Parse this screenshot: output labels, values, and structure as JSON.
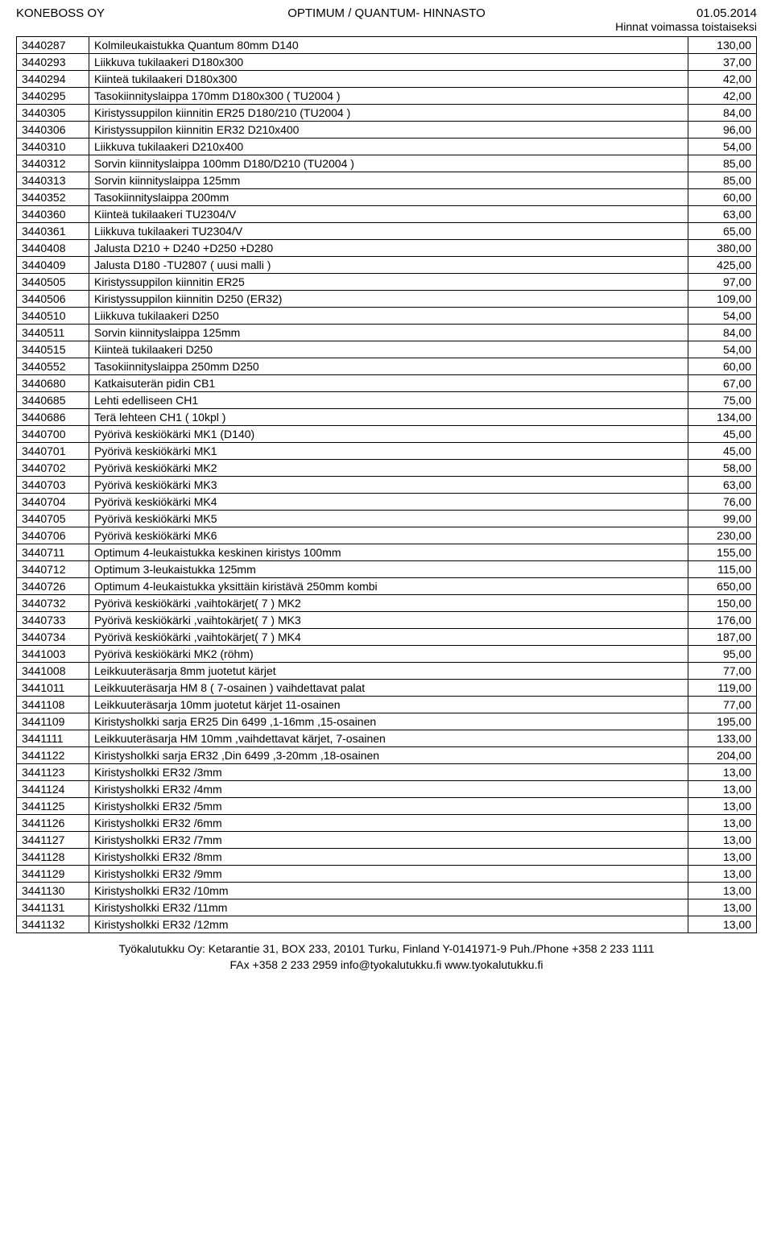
{
  "header": {
    "company": "KONEBOSS OY",
    "title": "OPTIMUM / QUANTUM- HINNASTO",
    "date": "01.05.2014",
    "validity": "Hinnat voimassa toistaiseksi"
  },
  "table": {
    "columns": [
      "code",
      "description",
      "price"
    ],
    "col_widths": {
      "code": "90px",
      "desc": "auto",
      "price": "85px"
    },
    "text_align": {
      "code": "left",
      "description": "left",
      "price": "right"
    },
    "border_color": "#000000",
    "font_size": 14,
    "rows": [
      [
        "3440287",
        "Kolmileukaistukka Quantum 80mm D140",
        "130,00"
      ],
      [
        "3440293",
        "Liikkuva tukilaakeri D180x300",
        "37,00"
      ],
      [
        "3440294",
        "Kiinteä tukilaakeri  D180x300",
        "42,00"
      ],
      [
        "3440295",
        "Tasokiinnityslaippa 170mm D180x300 ( TU2004 )",
        "42,00"
      ],
      [
        "3440305",
        "Kiristyssuppilon kiinnitin ER25 D180/210 (TU2004 )",
        "84,00"
      ],
      [
        "3440306",
        "Kiristyssuppilon kiinnitin ER32 D210x400",
        "96,00"
      ],
      [
        "3440310",
        "Liikkuva tukilaakeri D210x400",
        "54,00"
      ],
      [
        "3440312",
        "Sorvin kiinnityslaippa 100mm D180/D210 (TU2004 )",
        "85,00"
      ],
      [
        "3440313",
        "Sorvin kiinnityslaippa 125mm",
        "85,00"
      ],
      [
        "3440352",
        "Tasokiinnityslaippa 200mm",
        "60,00"
      ],
      [
        "3440360",
        "Kiinteä tukilaakeri   TU2304/V",
        "63,00"
      ],
      [
        "3440361",
        "Liikkuva tukilaakeri TU2304/V",
        "65,00"
      ],
      [
        "3440408",
        "Jalusta D210 + D240 +D250 +D280",
        "380,00"
      ],
      [
        "3440409",
        "Jalusta D180 -TU2807 ( uusi malli )",
        "425,00"
      ],
      [
        "3440505",
        "Kiristyssuppilon kiinnitin ER25",
        "97,00"
      ],
      [
        "3440506",
        "Kiristyssuppilon kiinnitin D250 (ER32)",
        "109,00"
      ],
      [
        "3440510",
        "Liikkuva tukilaakeri D250",
        "54,00"
      ],
      [
        "3440511",
        "Sorvin kiinnityslaippa 125mm",
        "84,00"
      ],
      [
        "3440515",
        "Kiinteä tukilaakeri D250",
        "54,00"
      ],
      [
        "3440552",
        "Tasokiinnityslaippa 250mm D250",
        "60,00"
      ],
      [
        "3440680",
        "Katkaisuterän pidin CB1",
        "67,00"
      ],
      [
        "3440685",
        "Lehti edelliseen CH1",
        "75,00"
      ],
      [
        "3440686",
        "Terä lehteen CH1 ( 10kpl )",
        "134,00"
      ],
      [
        "3440700",
        "Pyörivä keskiökärki MK1 (D140)",
        "45,00"
      ],
      [
        "3440701",
        "Pyörivä keskiökärki MK1",
        "45,00"
      ],
      [
        "3440702",
        "Pyörivä keskiökärki MK2",
        "58,00"
      ],
      [
        "3440703",
        "Pyörivä keskiökärki MK3",
        "63,00"
      ],
      [
        "3440704",
        "Pyörivä keskiökärki MK4",
        "76,00"
      ],
      [
        "3440705",
        "Pyörivä keskiökärki MK5",
        "99,00"
      ],
      [
        "3440706",
        "Pyörivä keskiökärki MK6",
        "230,00"
      ],
      [
        "3440711",
        "Optimum 4-leukaistukka keskinen kiristys 100mm",
        "155,00"
      ],
      [
        "3440712",
        "Optimum 3-leukaistukka 125mm",
        "115,00"
      ],
      [
        "3440726",
        "Optimum 4-leukaistukka yksittäin kiristävä 250mm kombi",
        "650,00"
      ],
      [
        "3440732",
        "Pyörivä keskiökärki ,vaihtokärjet( 7 ) MK2",
        "150,00"
      ],
      [
        "3440733",
        "Pyörivä keskiökärki ,vaihtokärjet( 7 ) MK3",
        "176,00"
      ],
      [
        "3440734",
        "Pyörivä keskiökärki ,vaihtokärjet( 7 ) MK4",
        "187,00"
      ],
      [
        "3441003",
        "Pyörivä keskiökärki MK2 (röhm)",
        "95,00"
      ],
      [
        "3441008",
        "Leikkuuteräsarja 8mm juotetut kärjet",
        "77,00"
      ],
      [
        "3441011",
        "Leikkuuteräsarja HM 8 ( 7-osainen ) vaihdettavat palat",
        "119,00"
      ],
      [
        "3441108",
        "Leikkuuteräsarja 10mm juotetut kärjet 11-osainen",
        "77,00"
      ],
      [
        "3441109",
        "Kiristysholkki sarja ER25 Din 6499 ,1-16mm ,15-osainen",
        "195,00"
      ],
      [
        "3441111",
        "Leikkuuteräsarja HM 10mm ,vaihdettavat kärjet, 7-osainen",
        "133,00"
      ],
      [
        "3441122",
        "Kiristysholkki sarja ER32 ,Din 6499 ,3-20mm ,18-osainen",
        "204,00"
      ],
      [
        "3441123",
        "Kiristysholkki ER32 /3mm",
        "13,00"
      ],
      [
        "3441124",
        "Kiristysholkki ER32 /4mm",
        "13,00"
      ],
      [
        "3441125",
        "Kiristysholkki ER32 /5mm",
        "13,00"
      ],
      [
        "3441126",
        "Kiristysholkki ER32 /6mm",
        "13,00"
      ],
      [
        "3441127",
        "Kiristysholkki ER32 /7mm",
        "13,00"
      ],
      [
        "3441128",
        "Kiristysholkki ER32 /8mm",
        "13,00"
      ],
      [
        "3441129",
        "Kiristysholkki ER32 /9mm",
        "13,00"
      ],
      [
        "3441130",
        "Kiristysholkki ER32 /10mm",
        "13,00"
      ],
      [
        "3441131",
        "Kiristysholkki ER32 /11mm",
        "13,00"
      ],
      [
        "3441132",
        "Kiristysholkki ER32 /12mm",
        "13,00"
      ]
    ]
  },
  "footer": {
    "line1": "Työkalutukku Oy: Ketarantie 31, BOX 233, 20101 Turku, Finland Y-0141971-9 Puh./Phone +358 2 233 1111",
    "line2": "FAx +358 2 233 2959 info@tyokalutukku.fi www.tyokalutukku.fi"
  },
  "colors": {
    "background": "#ffffff",
    "text": "#000000",
    "border": "#000000"
  }
}
